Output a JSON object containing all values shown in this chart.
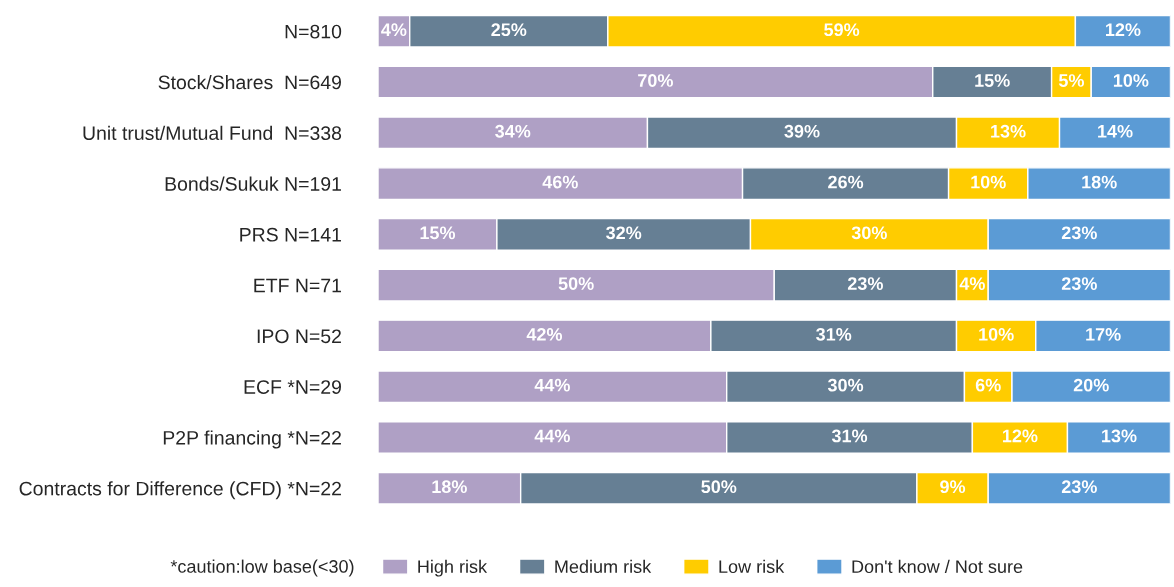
{
  "chart_data": {
    "type": "bar",
    "orientation": "horizontal",
    "stacked": true,
    "legend": "bottom",
    "categories": [
      "N=810",
      "Stock/Shares  N=649",
      "Unit trust/Mutual Fund  N=338",
      "Bonds/Sukuk N=191",
      "PRS N=141",
      "ETF N=71",
      "IPO N=52",
      "ECF *N=29",
      "P2P financing *N=22",
      "Contracts for Difference (CFD) *N=22"
    ],
    "series": [
      {
        "name": "High risk",
        "color": "#afa0c5",
        "values": [
          4,
          70,
          34,
          46,
          15,
          50,
          42,
          44,
          44,
          18
        ],
        "value_labels": [
          "4%",
          "70%",
          "34%",
          "46%",
          "15%",
          "50%",
          "42%",
          "44%",
          "44%",
          "18%"
        ]
      },
      {
        "name": "Medium risk",
        "color": "#667f94",
        "values": [
          25,
          15,
          39,
          26,
          32,
          23,
          31,
          30,
          31,
          50
        ],
        "value_labels": [
          "25%",
          "15%",
          "39%",
          "26%",
          "32%",
          "23%",
          "31%",
          "30%",
          "31%",
          "50%"
        ]
      },
      {
        "name": "Low risk",
        "color": "#ffcc00",
        "values": [
          59,
          5,
          13,
          10,
          30,
          4,
          10,
          6,
          12,
          9
        ],
        "value_labels": [
          "59%",
          "5%",
          "13%",
          "10%",
          "30%",
          "4%",
          "10%",
          "6%",
          "12%",
          "9%"
        ]
      },
      {
        "name": "Don't know / Not sure",
        "color": "#5b9bd5",
        "values": [
          12,
          10,
          14,
          18,
          23,
          23,
          17,
          20,
          13,
          23
        ],
        "value_labels": [
          "12%",
          "10%",
          "14%",
          "18%",
          "23%",
          "23%",
          "17%",
          "20%",
          "13%",
          "23%"
        ]
      }
    ],
    "annotations": [
      "*caution:low base(<30)"
    ]
  }
}
